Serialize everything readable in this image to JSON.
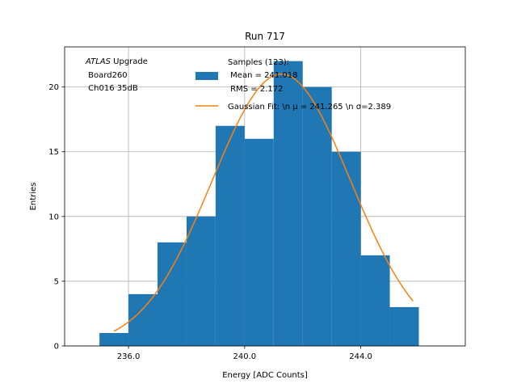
{
  "chart_data": {
    "type": "bar",
    "title": "Run 717",
    "xlabel": "Energy [ADC Counts]",
    "ylabel": "Entries",
    "xlim": [
      233.8,
      247.6
    ],
    "ylim": [
      0,
      23.1
    ],
    "xticks": [
      236.0,
      240.0,
      244.0
    ],
    "xtick_labels": [
      "236.0",
      "240.0",
      "244.0"
    ],
    "yticks": [
      0,
      5,
      10,
      15,
      20
    ],
    "ytick_labels": [
      "0",
      "5",
      "10",
      "15",
      "20"
    ],
    "grid": true,
    "bin_edges": [
      235.0,
      236.0,
      237.0,
      238.0,
      239.0,
      240.0,
      241.0,
      242.0,
      243.0,
      244.0,
      245.0,
      246.0
    ],
    "counts": [
      1,
      4,
      8,
      10,
      17,
      16,
      22,
      20,
      15,
      7,
      3
    ],
    "hist_color": "#1f77b4",
    "fit": {
      "mu": 241.265,
      "sigma": 2.389,
      "amplitude": 21.0,
      "x_range": [
        235.5,
        245.8
      ],
      "color": "#ff7f0e"
    },
    "annotation": {
      "italic": "ATLAS",
      "rest": " Upgrade",
      "line2": " Board260",
      "line3": " Ch016 35dB"
    },
    "legend": {
      "position": "top-right",
      "entries": [
        {
          "name": "Samples (123):",
          "line2": " Mean = 241.018",
          "line3": " RMS = 2.172",
          "kind": "patch"
        },
        {
          "name": "Gaussian Fit: \\n μ = 241.265 \\n σ=2.389",
          "kind": "line"
        }
      ]
    }
  }
}
